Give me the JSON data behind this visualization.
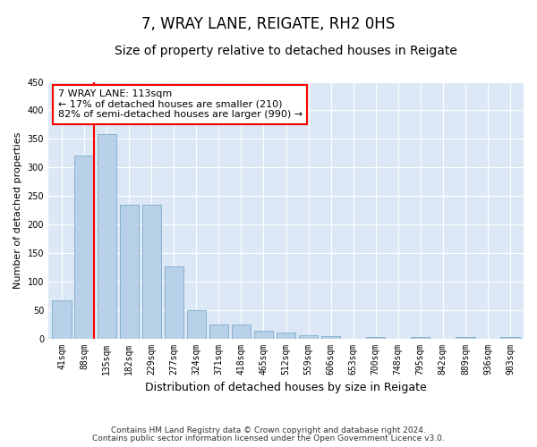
{
  "title": "7, WRAY LANE, REIGATE, RH2 0HS",
  "subtitle": "Size of property relative to detached houses in Reigate",
  "xlabel": "Distribution of detached houses by size in Reigate",
  "ylabel": "Number of detached properties",
  "categories": [
    "41sqm",
    "88sqm",
    "135sqm",
    "182sqm",
    "229sqm",
    "277sqm",
    "324sqm",
    "371sqm",
    "418sqm",
    "465sqm",
    "512sqm",
    "559sqm",
    "606sqm",
    "653sqm",
    "700sqm",
    "748sqm",
    "795sqm",
    "842sqm",
    "889sqm",
    "936sqm",
    "983sqm"
  ],
  "values": [
    67,
    320,
    358,
    234,
    234,
    126,
    50,
    24,
    24,
    14,
    10,
    5,
    4,
    0,
    3,
    0,
    3,
    0,
    3,
    0,
    3
  ],
  "bar_color": "#b8d0e8",
  "bar_edge_color": "#7aaac8",
  "vline_color": "red",
  "vline_pos": 1.43,
  "annotation_line1": "7 WRAY LANE: 113sqm",
  "annotation_line2": "← 17% of detached houses are smaller (210)",
  "annotation_line3": "82% of semi-detached houses are larger (990) →",
  "ylim": [
    0,
    450
  ],
  "yticks": [
    0,
    50,
    100,
    150,
    200,
    250,
    300,
    350,
    400,
    450
  ],
  "footer1": "Contains HM Land Registry data © Crown copyright and database right 2024.",
  "footer2": "Contains public sector information licensed under the Open Government Licence v3.0.",
  "bg_color": "#ffffff",
  "plot_bg_color": "#dce8f5",
  "grid_color": "#ffffff",
  "title_fontsize": 12,
  "subtitle_fontsize": 10,
  "xlabel_fontsize": 9,
  "ylabel_fontsize": 8,
  "tick_fontsize": 7,
  "annot_fontsize": 8,
  "footer_fontsize": 6.5
}
